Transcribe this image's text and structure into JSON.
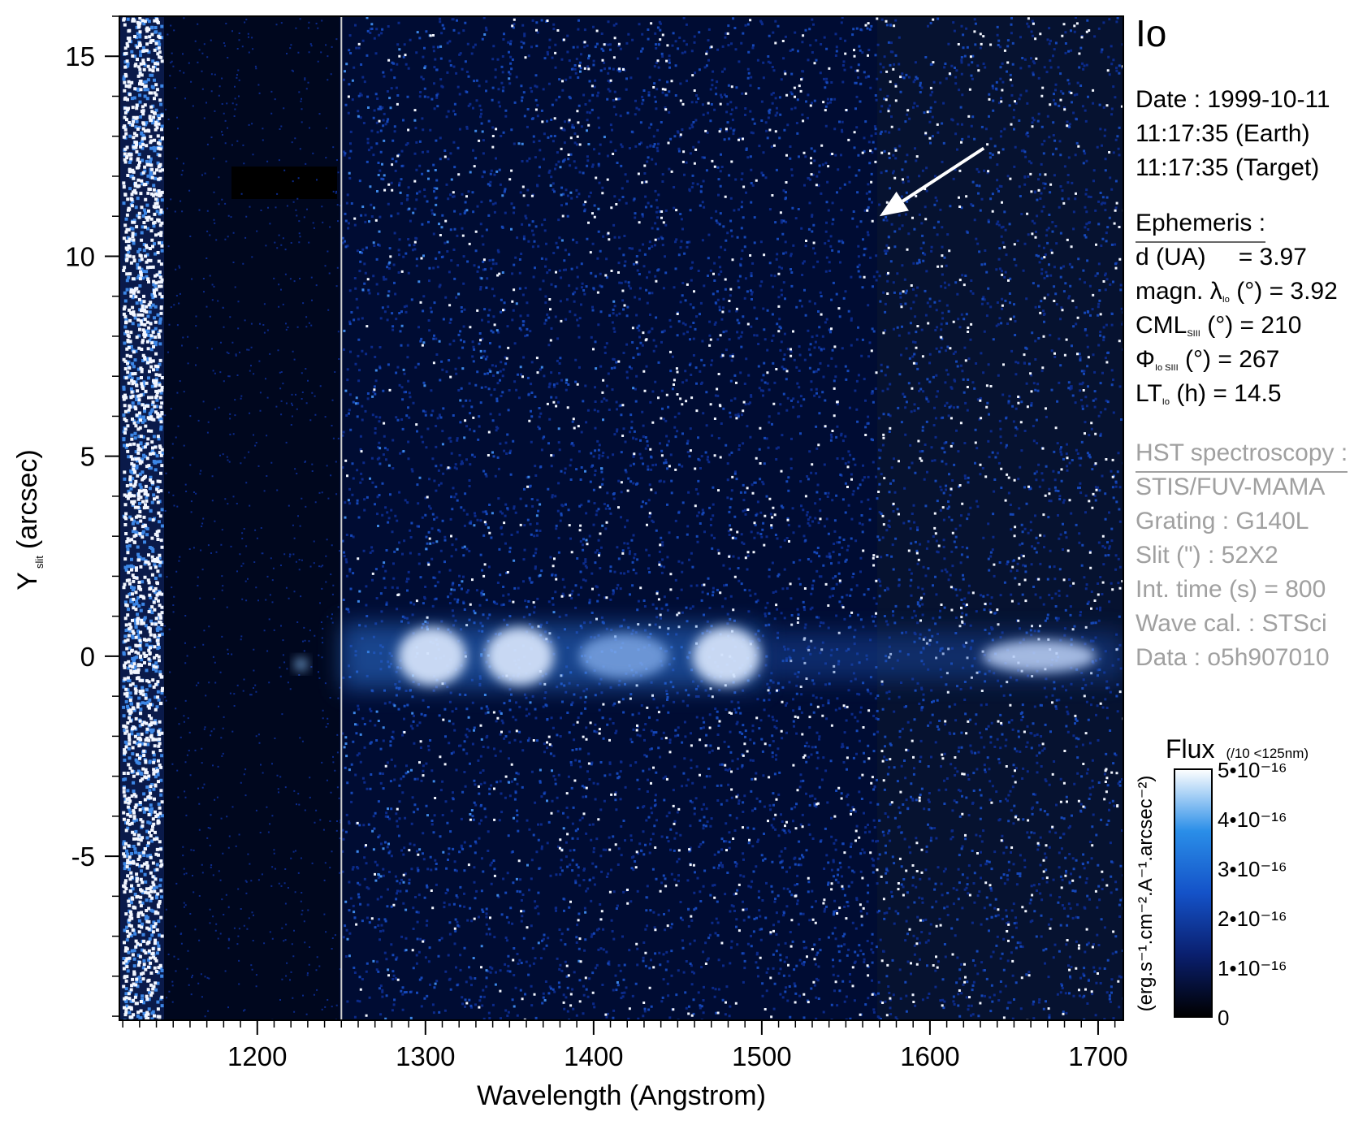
{
  "chart_data": {
    "type": "heatmap",
    "xlabel": "Wavelength (Angstrom)",
    "ylabel_main": "Y",
    "ylabel_sub": "slit",
    "ylabel_unit": "(arcsec)",
    "xlim": [
      1118,
      1715
    ],
    "ylim": [
      -9.1,
      16.0
    ],
    "x_ticks": [
      1200,
      1300,
      1400,
      1500,
      1600,
      1700
    ],
    "y_ticks": [
      -5,
      0,
      5,
      10,
      15
    ],
    "x_minor_step": 10,
    "y_minor_step": 1,
    "slit_edge_x": 1250,
    "emission_band_y": 0,
    "bright_features_x": [
      1304,
      1356,
      1479
    ],
    "lyman_alpha_x": 1226,
    "arrow": {
      "from": [
        1632,
        12.7
      ],
      "to": [
        1570,
        11.0
      ]
    },
    "colorbar": {
      "title": "Flux",
      "note": "(/10 <125nm)",
      "unit_label": "(erg.s⁻¹.cm⁻².A⁻¹.arcsec⁻²)",
      "ticks": [
        "5•10⁻¹⁶",
        "4•10⁻¹⁶",
        "3•10⁻¹⁶",
        "2•10⁻¹⁶",
        "1•10⁻¹⁶",
        "0"
      ],
      "tick_values": [
        5e-16,
        4e-16,
        3e-16,
        2e-16,
        1e-16,
        0
      ],
      "range": [
        0,
        5e-16
      ],
      "colors": [
        "#000000",
        "#0a1f6e",
        "#1452c8",
        "#2a8ee8",
        "#ffffff"
      ]
    }
  },
  "target": "Io",
  "observation": {
    "date_line": "Date : 1999-10-11",
    "earth_time": "11:17:35 (Earth)",
    "target_time": "11:17:35 (Target)"
  },
  "ephemeris": {
    "title": "Ephemeris :",
    "d_label": "d (UA)",
    "d_value": "= 3.97",
    "magn_label": "magn. λ",
    "magn_sub": "Io",
    "magn_rest": "(°)  = 3.92",
    "cml_label": "CML",
    "cml_sub": "SIII",
    "cml_rest": "(°) = 210",
    "phi_label": "Φ",
    "phi_sub": "Io SIII",
    "phi_rest": "(°) = 267",
    "lt_label": "LT",
    "lt_sub": "Io",
    "lt_rest": "(h) = 14.5"
  },
  "hst": {
    "title": "HST spectroscopy :",
    "instrument": "STIS/FUV-MAMA",
    "grating": "Grating : G140L",
    "slit": "Slit (\") : 52X2",
    "int_time": "Int. time (s) = 800",
    "wave_cal": "Wave cal. : STSci",
    "data_id": "Data : o5h907010"
  }
}
